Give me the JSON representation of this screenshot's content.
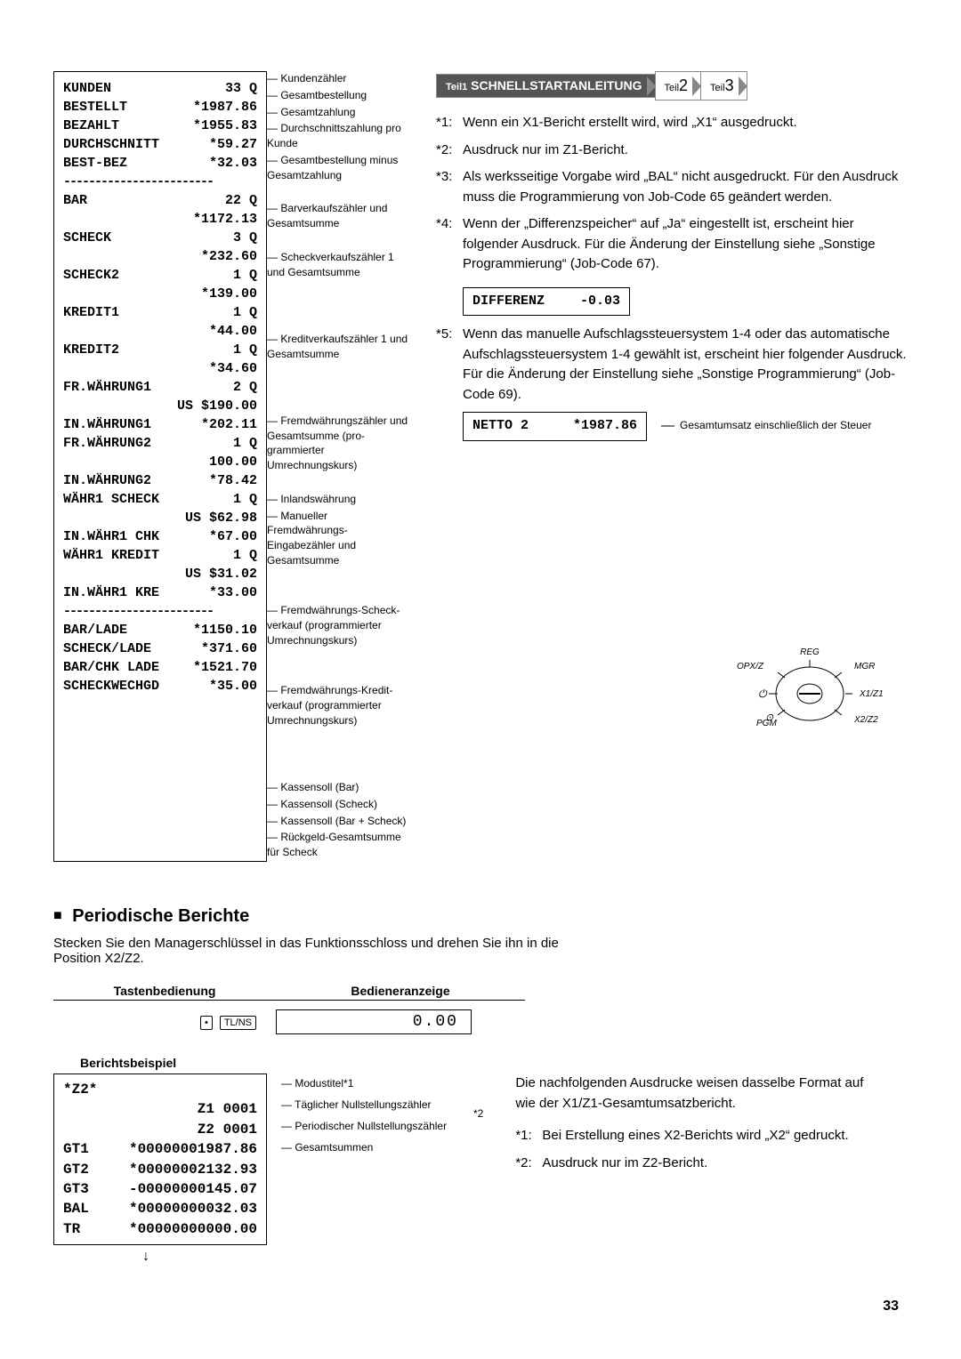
{
  "breadcrumb": {
    "t1_prefix": "Teil1",
    "t1": "SCHNELLSTARTANLEITUNG",
    "t2": "Teil2",
    "t3": "Teil3"
  },
  "receipt": {
    "rows": [
      {
        "l": "KUNDEN",
        "v": "33 Q",
        "a": "Kundenzähler"
      },
      {
        "l": "BESTELLT",
        "v": "*1987.86",
        "a": "Gesamtbestellung"
      },
      {
        "l": "BEZAHLT",
        "v": "*1955.83",
        "a": "Gesamtzahlung"
      },
      {
        "l": "DURCHSCHNITT",
        "v": "*59.27",
        "a": "Durchschnittszahlung pro Kunde"
      },
      {
        "l": "BEST-BEZ",
        "v": "*32.03",
        "a": "Gesamtbestellung minus Gesamtzahlung"
      },
      {
        "l": "",
        "v": "",
        "a": ""
      },
      {
        "l": "BAR",
        "v": "22 Q",
        "a": "Barverkaufszähler und Gesamtsumme"
      },
      {
        "l": "",
        "v": "*1172.13",
        "a": ""
      },
      {
        "l": "SCHECK",
        "v": "3 Q",
        "a": "Scheckverkaufszähler 1 und Gesamtsumme"
      },
      {
        "l": "",
        "v": "*232.60",
        "a": ""
      },
      {
        "l": "SCHECK2",
        "v": "1 Q",
        "a": ""
      },
      {
        "l": "",
        "v": "*139.00",
        "a": ""
      },
      {
        "l": "KREDIT1",
        "v": "1 Q",
        "a": "Kreditverkaufszähler 1 und Gesamtsumme"
      },
      {
        "l": "",
        "v": "*44.00",
        "a": ""
      },
      {
        "l": "KREDIT2",
        "v": "1 Q",
        "a": ""
      },
      {
        "l": "",
        "v": "*34.60",
        "a": ""
      },
      {
        "l": "FR.WÄHRUNG1",
        "v": "2 Q",
        "a": "Fremdwährungszähler und Gesamtsumme (pro­grammierter Umrechnungskurs)"
      },
      {
        "l": "",
        "v": "US $190.00",
        "a": ""
      },
      {
        "l": "IN.WÄHRUNG1",
        "v": "*202.11",
        "a": "Inlandswährung"
      },
      {
        "l": "FR.WÄHRUNG2",
        "v": "1 Q",
        "a": "Manueller Fremdwährungs-Eingabezähler und Gesamtsumme"
      },
      {
        "l": "",
        "v": "100.00",
        "a": ""
      },
      {
        "l": "IN.WÄHRUNG2",
        "v": "*78.42",
        "a": ""
      },
      {
        "l": "WÄHR1 SCHECK",
        "v": "1 Q",
        "a": "Fremdwährungs-Scheck­verkauf (programmierter Umrechnungskurs)"
      },
      {
        "l": "",
        "v": "US $62.98",
        "a": ""
      },
      {
        "l": "IN.WÄHR1 CHK",
        "v": "*67.00",
        "a": ""
      },
      {
        "l": "WÄHR1 KREDIT",
        "v": "1 Q",
        "a": "Fremdwährungs-Kredit­verkauf (programmierter Umrechnungskurs)"
      },
      {
        "l": "",
        "v": "US $31.02",
        "a": ""
      },
      {
        "l": "IN.WÄHR1 KRE",
        "v": "*33.00",
        "a": ""
      },
      {
        "l": "",
        "v": "",
        "a": ""
      },
      {
        "l": "BAR/LADE",
        "v": "*1150.10",
        "a": "Kassensoll (Bar)"
      },
      {
        "l": "SCHECK/LADE",
        "v": "*371.60",
        "a": "Kassensoll (Scheck)"
      },
      {
        "l": "BAR/CHK LADE",
        "v": "*1521.70",
        "a": "Kassensoll (Bar + Scheck)"
      },
      {
        "l": "SCHECKWECHGD",
        "v": "*35.00",
        "a": "Rückgeld-Gesamtsumme für Scheck"
      }
    ],
    "dash": "------------------------"
  },
  "notes": [
    {
      "ref": "*1:",
      "text": "Wenn ein X1-Bericht erstellt wird, wird „X1“ ausgedruckt."
    },
    {
      "ref": "*2:",
      "text": "Ausdruck nur im Z1-Bericht."
    },
    {
      "ref": "*3:",
      "text": "Als werksseitige Vorgabe wird „BAL“ nicht ausgedruckt. Für den Ausdruck muss die Programmierung von Job-Code 65 geändert werden."
    },
    {
      "ref": "*4:",
      "text": "Wenn der „Differenzspeicher“ auf „Ja“ eingestellt ist, erscheint hier folgender Ausdruck. Für die Änderung der Einstellung siehe „Sonstige Programmierung“ (Job-Code 67)."
    }
  ],
  "diff_box": {
    "label": "DIFFERENZ",
    "value": "-0.03"
  },
  "note5": {
    "ref": "*5:",
    "text": "Wenn das manuelle Aufschlagssteuersystem 1-4 oder das automatische Aufschlagssteuersystem 1-4 gewählt ist, erscheint hier folgender Ausdruck. Für die Änderung der Einstellung siehe „Sonstige Programmierung“ (Job-Code 69)."
  },
  "netto_box": {
    "label": "NETTO 2",
    "value": "*1987.86",
    "ann": "Gesamtumsatz einschließlich der Steuer"
  },
  "section2": {
    "title": "Periodische Berichte",
    "intro": "Stecken Sie den Managerschlüssel in das Funktionsschloss und drehen Sie ihn in die Position X2/Z2.",
    "th1": "Tastenbedienung",
    "th2": "Bedieneranzeige",
    "key1": "•",
    "key2": "TL/NS",
    "display": "0.00",
    "sub": "Berichtsbeispiel"
  },
  "keyswitch": {
    "labels": [
      "REG",
      "OPX/Z",
      "MGR",
      "X1/Z1",
      "X2/Z2",
      "PGM"
    ],
    "power_icon": "⏻",
    "key_icon": "⊙"
  },
  "report2": {
    "rows": [
      {
        "l": "*Z2*",
        "v": ""
      },
      {
        "l": "",
        "v": "Z1  0001"
      },
      {
        "l": "",
        "v": "Z2  0001"
      },
      {
        "l": "GT1",
        "v": "*00000001987.86"
      },
      {
        "l": "GT2",
        "v": "*00000002132.93"
      },
      {
        "l": "GT3",
        "v": "-00000000145.07"
      },
      {
        "l": "BAL",
        "v": "*00000000032.03"
      },
      {
        "l": "TR",
        "v": "*00000000000.00"
      }
    ],
    "ann": [
      "Modustitel*1",
      "Täglicher Nullstellungs­zähler",
      "Periodischer Nullstellungs­zähler",
      "Gesamtsummen"
    ],
    "star2": "*2"
  },
  "right_notes": {
    "intro": "Die nachfolgenden Ausdrucke weisen dasselbe Format auf wie der X1/Z1-Gesamtumsatzbericht.",
    "items": [
      {
        "ref": "*1:",
        "text": "Bei Erstellung eines X2-Berichts wird „X2“ gedruckt."
      },
      {
        "ref": "*2:",
        "text": "Ausdruck nur im Z2-Bericht."
      }
    ]
  },
  "page_num": "33"
}
